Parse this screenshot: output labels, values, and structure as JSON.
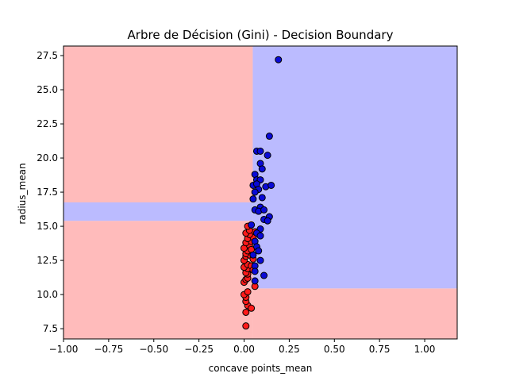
{
  "chart_data": {
    "type": "scatter",
    "title": "Arbre de Décision (Gini) - Decision Boundary",
    "xlabel": "concave points_mean",
    "ylabel": "radius_mean",
    "xlim": [
      -1.0,
      1.18
    ],
    "ylim": [
      6.75,
      28.2
    ],
    "xticks": [
      -1.0,
      -0.75,
      -0.5,
      -0.25,
      0.0,
      0.25,
      0.5,
      0.75,
      1.0
    ],
    "xtick_labels": [
      "−1.00",
      "−0.75",
      "−0.50",
      "−0.25",
      "0.00",
      "0.25",
      "0.50",
      "0.75",
      "1.00"
    ],
    "yticks": [
      7.5,
      10.0,
      12.5,
      15.0,
      17.5,
      20.0,
      22.5,
      25.0,
      27.5
    ],
    "ytick_labels": [
      "7.5",
      "10.0",
      "12.5",
      "15.0",
      "17.5",
      "20.0",
      "22.5",
      "25.0",
      "27.5"
    ],
    "grid": false,
    "colors": {
      "region_red": "#ffbbbb",
      "region_blue": "#bbbbff",
      "point_red": "#ff1a1a",
      "point_blue": "#0a0ad6",
      "edge": "#000000"
    },
    "regions": [
      {
        "class": "red",
        "x": [
          -1.0,
          0.048
        ],
        "y": [
          6.75,
          15.4
        ]
      },
      {
        "class": "blue",
        "x": [
          -1.0,
          0.048
        ],
        "y": [
          15.4,
          16.75
        ]
      },
      {
        "class": "red",
        "x": [
          -1.0,
          0.048
        ],
        "y": [
          16.75,
          28.2
        ]
      },
      {
        "class": "red",
        "x": [
          0.048,
          1.18
        ],
        "y": [
          6.75,
          10.45
        ]
      },
      {
        "class": "blue",
        "x": [
          0.048,
          1.18
        ],
        "y": [
          10.45,
          28.2
        ]
      }
    ],
    "series": [
      {
        "class": "red",
        "points": [
          [
            0.01,
            7.7
          ],
          [
            0.01,
            8.7
          ],
          [
            0.02,
            9.2
          ],
          [
            0.04,
            9.0
          ],
          [
            0.01,
            9.5
          ],
          [
            0.01,
            9.8
          ],
          [
            0.0,
            10.0
          ],
          [
            0.02,
            10.2
          ],
          [
            0.0,
            10.9
          ],
          [
            0.01,
            11.1
          ],
          [
            0.02,
            11.2
          ],
          [
            0.06,
            10.6
          ],
          [
            0.02,
            11.5
          ],
          [
            0.01,
            11.6
          ],
          [
            0.02,
            11.9
          ],
          [
            0.0,
            12.0
          ],
          [
            0.02,
            12.2
          ],
          [
            0.0,
            12.5
          ],
          [
            0.01,
            12.8
          ],
          [
            0.03,
            12.9
          ],
          [
            0.05,
            12.6
          ],
          [
            0.01,
            13.0
          ],
          [
            0.02,
            13.2
          ],
          [
            0.0,
            13.4
          ],
          [
            0.03,
            13.6
          ],
          [
            0.01,
            13.8
          ],
          [
            0.04,
            13.9
          ],
          [
            0.02,
            14.1
          ],
          [
            0.05,
            14.2
          ],
          [
            0.03,
            14.4
          ],
          [
            0.01,
            14.5
          ],
          [
            0.06,
            14.6
          ],
          [
            0.03,
            14.7
          ],
          [
            0.02,
            15.0
          ],
          [
            0.04,
            12.1
          ],
          [
            0.05,
            11.8
          ],
          [
            0.04,
            13.3
          ]
        ]
      },
      {
        "class": "blue",
        "points": [
          [
            0.19,
            27.2
          ],
          [
            0.14,
            21.6
          ],
          [
            0.07,
            20.5
          ],
          [
            0.09,
            20.5
          ],
          [
            0.13,
            20.2
          ],
          [
            0.09,
            19.6
          ],
          [
            0.1,
            19.2
          ],
          [
            0.06,
            18.8
          ],
          [
            0.07,
            18.4
          ],
          [
            0.09,
            18.4
          ],
          [
            0.05,
            18.0
          ],
          [
            0.07,
            18.1
          ],
          [
            0.12,
            17.9
          ],
          [
            0.15,
            18.0
          ],
          [
            0.08,
            17.7
          ],
          [
            0.06,
            17.5
          ],
          [
            0.1,
            17.1
          ],
          [
            0.05,
            17.0
          ],
          [
            0.09,
            16.4
          ],
          [
            0.06,
            16.2
          ],
          [
            0.08,
            16.1
          ],
          [
            0.11,
            16.2
          ],
          [
            0.14,
            15.7
          ],
          [
            0.11,
            15.5
          ],
          [
            0.13,
            15.4
          ],
          [
            0.04,
            15.1
          ],
          [
            0.09,
            14.8
          ],
          [
            0.07,
            14.5
          ],
          [
            0.09,
            14.3
          ],
          [
            0.06,
            13.9
          ],
          [
            0.07,
            13.5
          ],
          [
            0.08,
            13.2
          ],
          [
            0.05,
            12.9
          ],
          [
            0.09,
            12.5
          ],
          [
            0.06,
            12.1
          ],
          [
            0.06,
            11.7
          ],
          [
            0.11,
            11.4
          ],
          [
            0.06,
            11.0
          ]
        ]
      }
    ]
  }
}
